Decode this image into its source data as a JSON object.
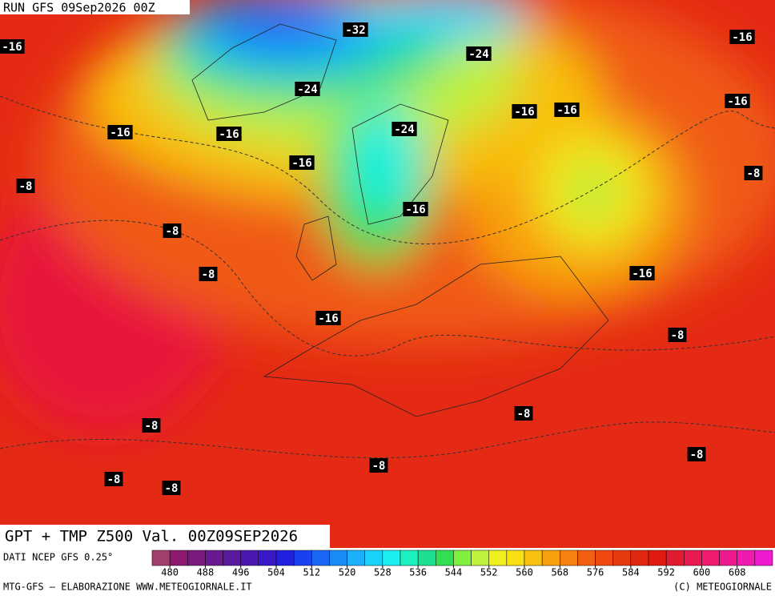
{
  "header": {
    "run": "RUN GFS 09Sep2026 00Z"
  },
  "title": "GPT + TMP Z500 Val. 00Z09SEP2026",
  "source": "DATI NCEP GFS 0.25°",
  "credits": {
    "left": "MTG-GFS – ELABORAZIONE WWW.METEOGIORNALE.IT",
    "right": "(C) METEOGIORNALE"
  },
  "legend": {
    "ticks": [
      480,
      488,
      496,
      504,
      512,
      520,
      528,
      536,
      544,
      552,
      560,
      568,
      576,
      584,
      592,
      600,
      608
    ],
    "colors": [
      "#a0406e",
      "#8c1a6e",
      "#7a1a80",
      "#6a1a90",
      "#5a1aa0",
      "#4a1ab0",
      "#3a1ac8",
      "#2020e0",
      "#1a40f0",
      "#1a66f5",
      "#1a8cf8",
      "#1ab0fa",
      "#1ad2fa",
      "#1af0f0",
      "#1af0c0",
      "#1ae090",
      "#30e050",
      "#80f040",
      "#c0f040",
      "#f0f020",
      "#f8e010",
      "#f8c010",
      "#f8a010",
      "#f88010",
      "#f06010",
      "#f04a10",
      "#e83a10",
      "#e02810",
      "#e01a10",
      "#e01a30",
      "#e81a50",
      "#f01a70",
      "#f01a90",
      "#f01ab0",
      "#f01ad0"
    ]
  },
  "contour_labels": [
    "-16",
    "-32",
    "-24",
    "-16",
    "-24",
    "-16",
    "-16",
    "-16",
    "-16",
    "-16",
    "-24",
    "-16",
    "-8",
    "-8",
    "-16",
    "-8",
    "-8",
    "-16",
    "-16",
    "-8",
    "-8",
    "-8",
    "-8",
    "-8",
    "-8",
    "-8"
  ]
}
